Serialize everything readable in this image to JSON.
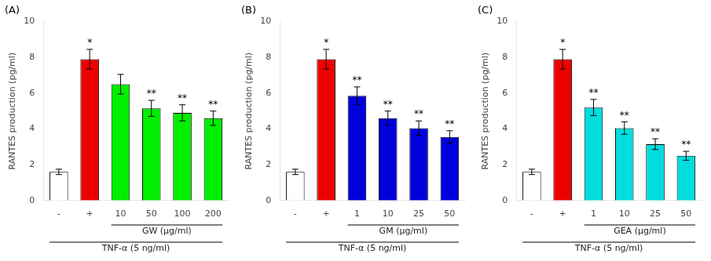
{
  "chart_data": [
    {
      "type": "bar",
      "title": "(A)",
      "categories": [
        "-",
        "+",
        "10",
        "50",
        "100",
        "200"
      ],
      "values": [
        1.6,
        7.9,
        6.5,
        5.15,
        4.9,
        4.6
      ],
      "errors": [
        0.15,
        0.55,
        0.55,
        0.45,
        0.45,
        0.4
      ],
      "colors": [
        "#ffffff",
        "#ee0000",
        "#00ee00",
        "#00ee00",
        "#00ee00",
        "#00ee00"
      ],
      "sig_labels": [
        null,
        "*",
        null,
        "**",
        "**",
        "**"
      ],
      "brackets": [
        {
          "text": "GW (μg/ml)",
          "from": "10",
          "to": "200"
        },
        {
          "text": "TNF-α (5 ng/ml)",
          "from": "-",
          "to": "200"
        }
      ],
      "y_label": "RANTES production (pg/ml)",
      "ylim": [
        0,
        10
      ],
      "yticks": [
        0,
        2,
        4,
        6,
        8,
        10
      ],
      "grid": false
    },
    {
      "type": "bar",
      "title": "(B)",
      "categories": [
        "-",
        "+",
        "1",
        "10",
        "25",
        "50"
      ],
      "values": [
        1.6,
        7.9,
        5.85,
        4.6,
        4.05,
        3.55
      ],
      "errors": [
        0.15,
        0.55,
        0.5,
        0.4,
        0.4,
        0.35
      ],
      "colors": [
        "#ffffff",
        "#ee0000",
        "#0000dd",
        "#0000dd",
        "#0000dd",
        "#0000dd"
      ],
      "sig_labels": [
        null,
        "*",
        "**",
        "**",
        "**",
        "**"
      ],
      "brackets": [
        {
          "text": "GM (μg/ml)",
          "from": "1",
          "to": "50"
        },
        {
          "text": "TNF-α (5 ng/ml)",
          "from": "-",
          "to": "50"
        }
      ],
      "y_label": "RANTES production (pg/ml)",
      "ylim": [
        0,
        10
      ],
      "yticks": [
        0,
        2,
        4,
        6,
        8,
        10
      ],
      "grid": false
    },
    {
      "type": "bar",
      "title": "(C)",
      "categories": [
        "-",
        "+",
        "1",
        "10",
        "25",
        "50"
      ],
      "values": [
        1.6,
        7.9,
        5.2,
        4.05,
        3.15,
        2.5
      ],
      "errors": [
        0.15,
        0.55,
        0.45,
        0.35,
        0.3,
        0.25
      ],
      "colors": [
        "#ffffff",
        "#ee0000",
        "#00dddd",
        "#00dddd",
        "#00dddd",
        "#00dddd"
      ],
      "sig_labels": [
        null,
        "*",
        "**",
        "**",
        "**",
        "**"
      ],
      "brackets": [
        {
          "text": "GEA (μg/ml)",
          "from": "1",
          "to": "50"
        },
        {
          "text": "TNF-α (5 ng/ml)",
          "from": "-",
          "to": "50"
        }
      ],
      "y_label": "RANTES production (pg/ml)",
      "ylim": [
        0,
        10
      ],
      "yticks": [
        0,
        2,
        4,
        6,
        8,
        10
      ],
      "grid": false
    }
  ]
}
